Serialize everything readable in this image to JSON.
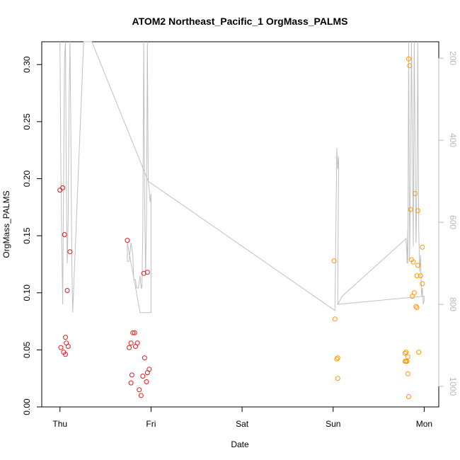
{
  "chart_data": {
    "type": "scatter",
    "title": "ATOM2 Northeast_Pacific_1 OrgMass_PALMS",
    "xlabel": "Date",
    "ylabel": "OrgMass_PALMS",
    "x_ticks": [
      "Thu",
      "Fri",
      "Sat",
      "Sun",
      "Mon"
    ],
    "y_ticks": [
      "0.00",
      "0.05",
      "0.10",
      "0.15",
      "0.20",
      "0.25",
      "0.30"
    ],
    "y_tick_values": [
      0,
      0.05,
      0.1,
      0.15,
      0.2,
      0.25,
      0.3
    ],
    "ylim": [
      0,
      0.32
    ],
    "xlim": [
      -0.2,
      4.16
    ],
    "y2_ticks": [
      "200",
      "400",
      "600",
      "800",
      "1000"
    ],
    "y2_tick_values": [
      200,
      400,
      600,
      800,
      1000
    ],
    "y2lim": [
      160,
      1050
    ],
    "grid": false,
    "colors": {
      "red": "#e41a1c",
      "orange": "#ff9900",
      "gray_line": "#c0c0c0",
      "right_axis": "#b8b8b8"
    },
    "series": [
      {
        "color": "#e41a1c",
        "points": [
          [
            0.0,
            0.19
          ],
          [
            0.03,
            0.192
          ],
          [
            0.05,
            0.151
          ],
          [
            0.11,
            0.136
          ],
          [
            0.08,
            0.102
          ],
          [
            0.06,
            0.061
          ],
          [
            0.07,
            0.056
          ],
          [
            0.09,
            0.053
          ],
          [
            0.01,
            0.052
          ],
          [
            0.04,
            0.048
          ],
          [
            0.06,
            0.046
          ],
          [
            0.74,
            0.146
          ],
          [
            0.92,
            0.117
          ],
          [
            0.96,
            0.118
          ],
          [
            0.8,
            0.065
          ],
          [
            0.82,
            0.065
          ],
          [
            0.78,
            0.056
          ],
          [
            0.85,
            0.056
          ],
          [
            0.83,
            0.053
          ],
          [
            0.76,
            0.052
          ],
          [
            0.93,
            0.043
          ],
          [
            0.98,
            0.033
          ],
          [
            0.96,
            0.03
          ],
          [
            0.79,
            0.028
          ],
          [
            0.91,
            0.027
          ],
          [
            0.95,
            0.022
          ],
          [
            0.78,
            0.021
          ],
          [
            0.87,
            0.015
          ],
          [
            0.89,
            0.01
          ]
        ]
      },
      {
        "color": "#ff9900",
        "points": [
          [
            3.01,
            0.128
          ],
          [
            3.02,
            0.077
          ],
          [
            3.04,
            0.042
          ],
          [
            3.05,
            0.043
          ],
          [
            3.05,
            0.025
          ],
          [
            3.83,
            0.305
          ],
          [
            3.84,
            0.299
          ],
          [
            3.9,
            0.187
          ],
          [
            3.85,
            0.173
          ],
          [
            3.93,
            0.172
          ],
          [
            3.98,
            0.14
          ],
          [
            3.86,
            0.129
          ],
          [
            3.88,
            0.127
          ],
          [
            3.93,
            0.124
          ],
          [
            3.92,
            0.115
          ],
          [
            3.96,
            0.115
          ],
          [
            3.98,
            0.108
          ],
          [
            3.89,
            0.1
          ],
          [
            3.87,
            0.097
          ],
          [
            3.91,
            0.088
          ],
          [
            3.92,
            0.087
          ],
          [
            3.8,
            0.048
          ],
          [
            3.94,
            0.048
          ],
          [
            3.79,
            0.047
          ],
          [
            3.82,
            0.044
          ],
          [
            3.79,
            0.04
          ],
          [
            3.8,
            0.04
          ],
          [
            3.81,
            0.04
          ],
          [
            3.82,
            0.029
          ],
          [
            3.83,
            0.009
          ]
        ]
      }
    ],
    "altitude_line": {
      "color": "#c0c0c0",
      "points": [
        [
          0.0,
          160
        ],
        [
          0.01,
          460
        ],
        [
          0.02,
          650
        ],
        [
          0.03,
          800
        ],
        [
          0.04,
          500
        ],
        [
          0.05,
          200
        ],
        [
          0.06,
          160
        ],
        [
          0.07,
          500
        ],
        [
          0.08,
          700
        ],
        [
          0.09,
          600
        ],
        [
          0.1,
          300
        ],
        [
          0.11,
          160
        ],
        [
          0.12,
          400
        ],
        [
          0.13,
          700
        ],
        [
          0.14,
          820
        ],
        [
          0.26,
          160
        ],
        [
          0.35,
          160
        ],
        [
          0.97,
          500
        ],
        [
          0.98,
          520
        ],
        [
          0.99,
          550
        ],
        [
          1.0,
          530
        ],
        [
          1.0,
          820
        ],
        [
          0.88,
          820
        ],
        [
          0.74,
          650
        ],
        [
          0.74,
          695
        ],
        [
          0.76,
          695
        ],
        [
          0.78,
          650
        ],
        [
          0.8,
          680
        ],
        [
          0.81,
          740
        ],
        [
          0.83,
          740
        ],
        [
          0.84,
          760
        ],
        [
          0.86,
          760
        ],
        [
          0.87,
          745
        ],
        [
          0.88,
          730
        ],
        [
          0.89,
          760
        ],
        [
          0.9,
          760
        ],
        [
          0.91,
          620
        ],
        [
          0.92,
          160
        ],
        [
          0.93,
          540
        ],
        [
          0.94,
          730
        ],
        [
          0.95,
          600
        ],
        [
          0.96,
          160
        ],
        [
          0.97,
          500
        ],
        [
          3.02,
          815
        ],
        [
          3.04,
          420
        ],
        [
          3.05,
          470
        ],
        [
          3.06,
          440
        ],
        [
          3.05,
          800
        ],
        [
          3.1,
          780
        ],
        [
          3.8,
          640
        ],
        [
          3.81,
          680
        ],
        [
          3.81,
          700
        ],
        [
          3.82,
          620
        ],
        [
          3.82,
          700
        ],
        [
          3.83,
          160
        ],
        [
          3.84,
          690
        ],
        [
          3.85,
          500
        ],
        [
          3.86,
          160
        ],
        [
          3.87,
          400
        ],
        [
          3.88,
          660
        ],
        [
          3.89,
          160
        ],
        [
          3.91,
          650
        ],
        [
          3.92,
          520
        ],
        [
          3.93,
          160
        ],
        [
          3.94,
          620
        ],
        [
          3.95,
          720
        ],
        [
          3.96,
          680
        ],
        [
          3.97,
          780
        ],
        [
          3.98,
          760
        ],
        [
          3.99,
          800
        ],
        [
          4.0,
          790
        ],
        [
          4.0,
          780
        ],
        [
          3.04,
          800
        ]
      ]
    }
  }
}
